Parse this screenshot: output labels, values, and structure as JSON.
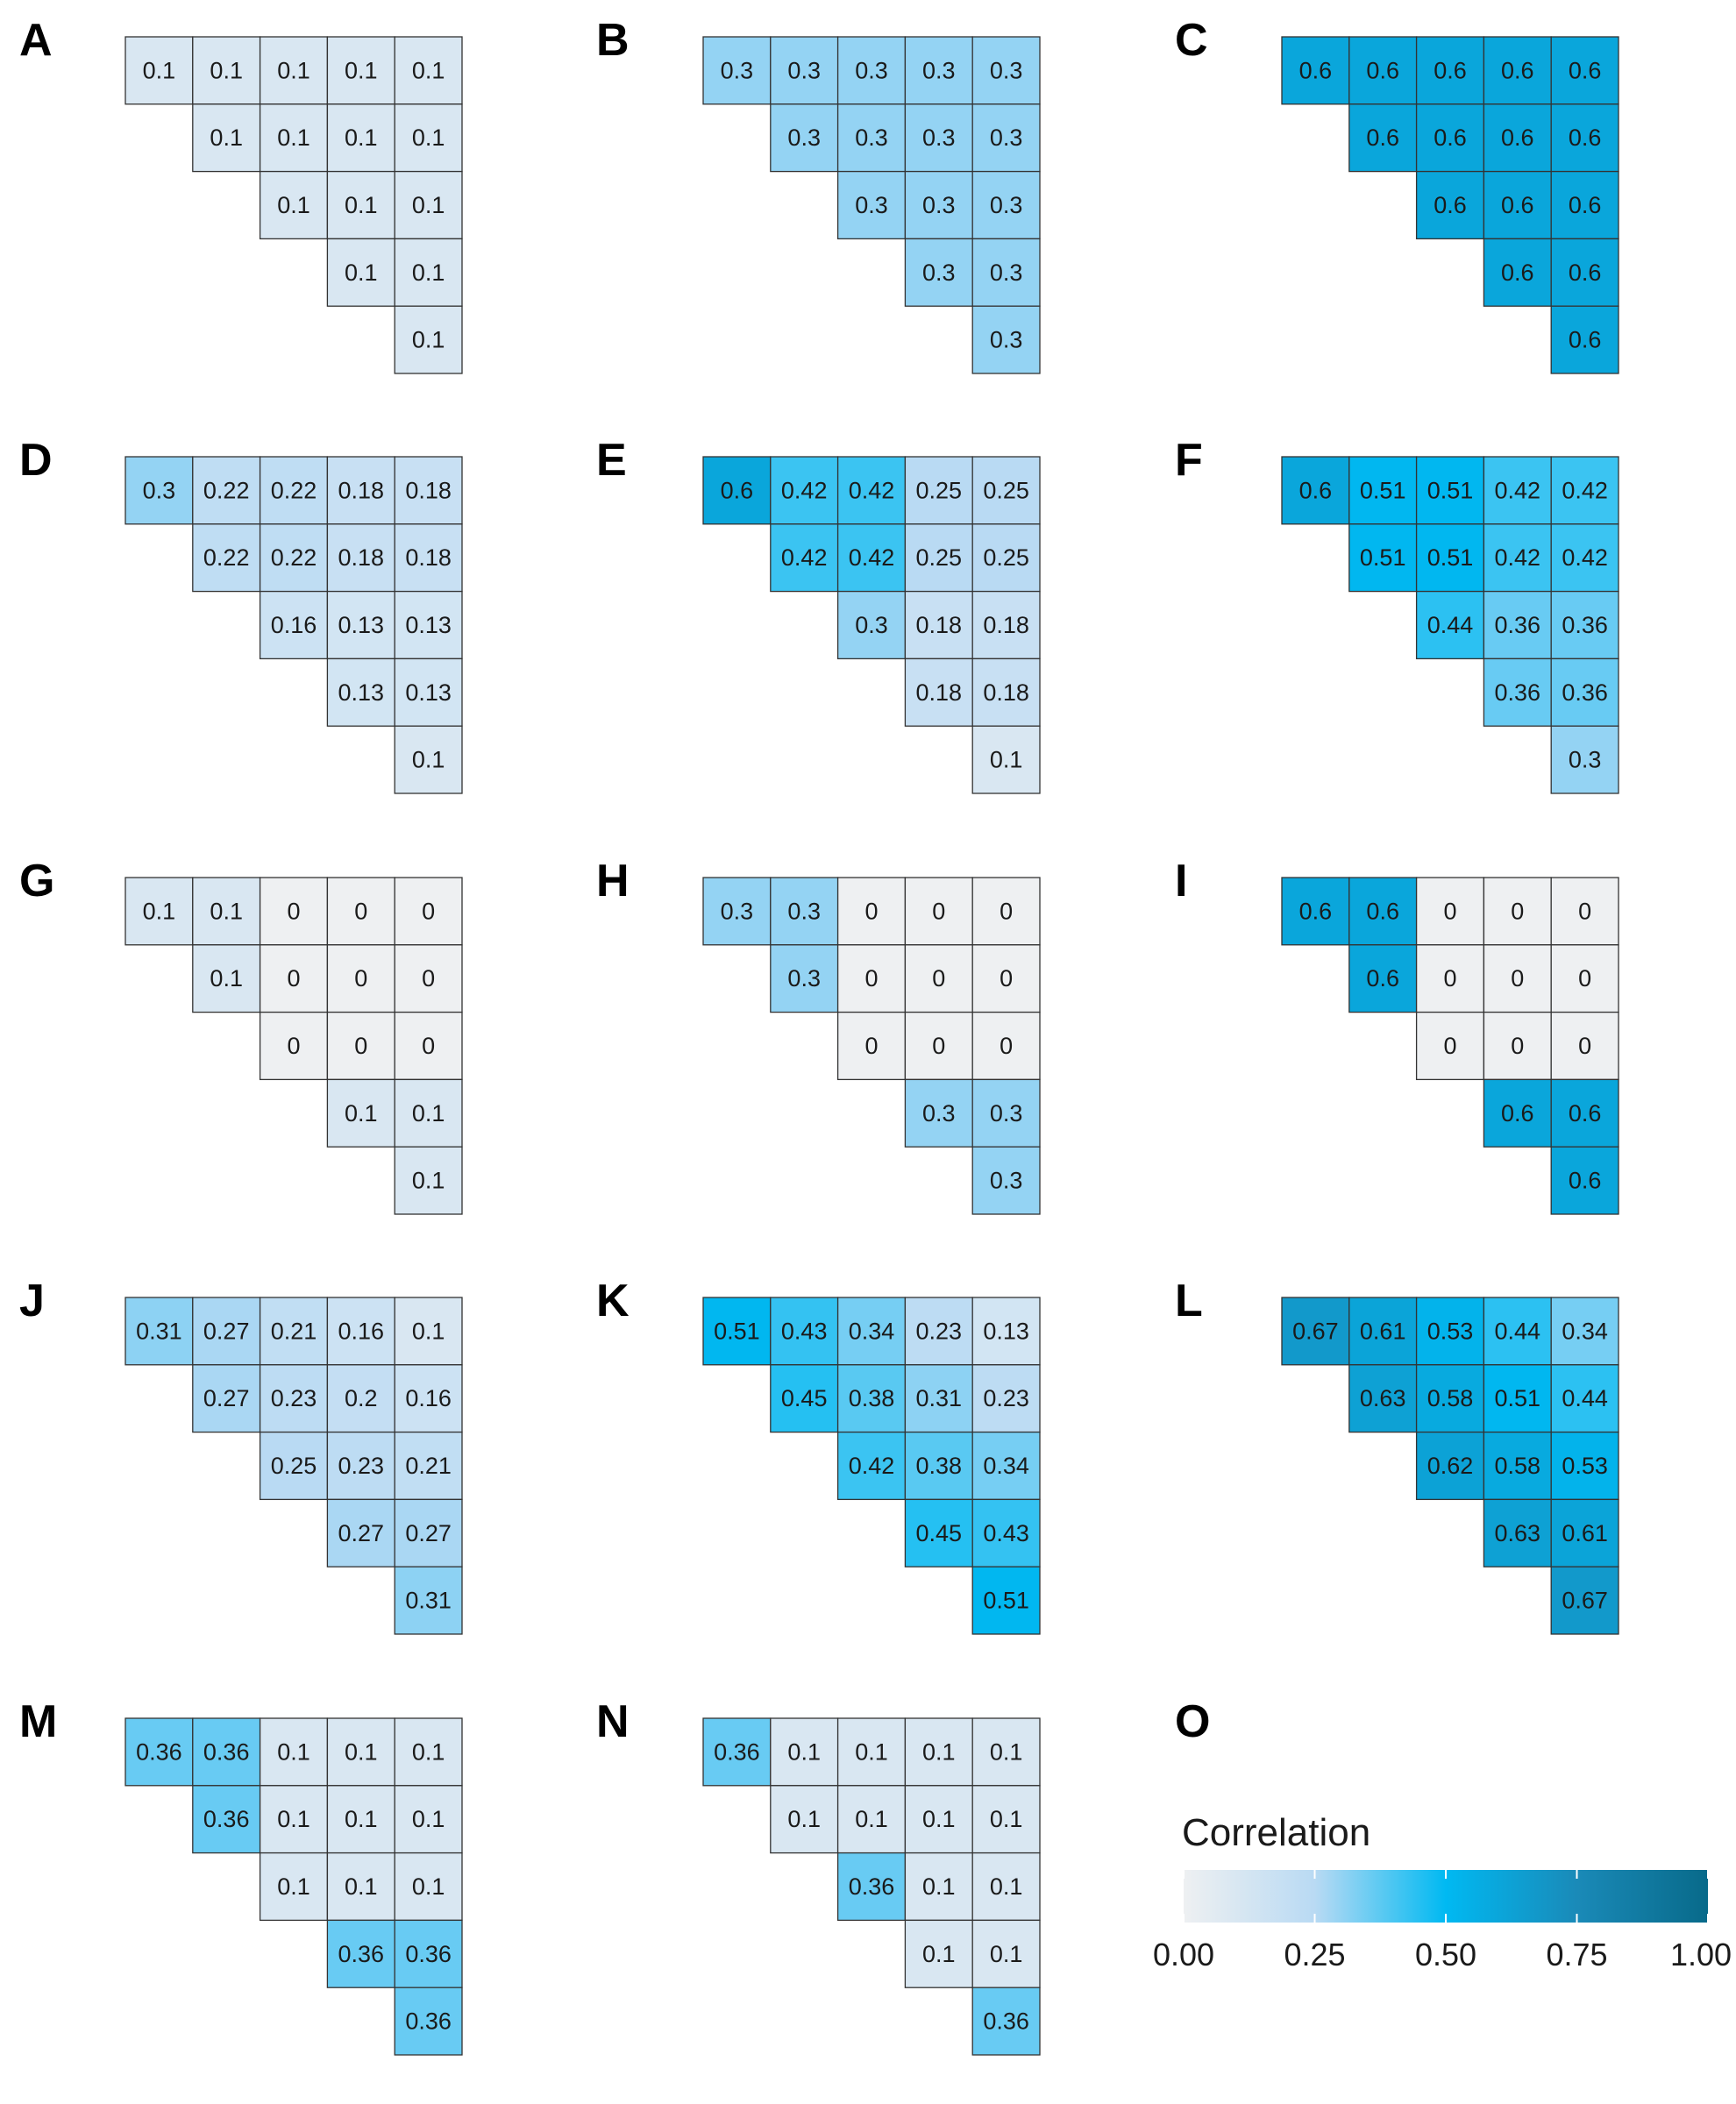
{
  "chart_data": {
    "type": "heatmap",
    "panels": [
      {
        "label": "A",
        "rows": [
          [
            0.1,
            0.1,
            0.1,
            0.1,
            0.1
          ],
          [
            0.1,
            0.1,
            0.1,
            0.1
          ],
          [
            0.1,
            0.1,
            0.1
          ],
          [
            0.1,
            0.1
          ],
          [
            0.1
          ]
        ]
      },
      {
        "label": "B",
        "rows": [
          [
            0.3,
            0.3,
            0.3,
            0.3,
            0.3
          ],
          [
            0.3,
            0.3,
            0.3,
            0.3
          ],
          [
            0.3,
            0.3,
            0.3
          ],
          [
            0.3,
            0.3
          ],
          [
            0.3
          ]
        ]
      },
      {
        "label": "C",
        "rows": [
          [
            0.6,
            0.6,
            0.6,
            0.6,
            0.6
          ],
          [
            0.6,
            0.6,
            0.6,
            0.6
          ],
          [
            0.6,
            0.6,
            0.6
          ],
          [
            0.6,
            0.6
          ],
          [
            0.6
          ]
        ]
      },
      {
        "label": "D",
        "rows": [
          [
            0.3,
            0.22,
            0.22,
            0.18,
            0.18
          ],
          [
            0.22,
            0.22,
            0.18,
            0.18
          ],
          [
            0.16,
            0.13,
            0.13
          ],
          [
            0.13,
            0.13
          ],
          [
            0.1
          ]
        ]
      },
      {
        "label": "E",
        "rows": [
          [
            0.6,
            0.42,
            0.42,
            0.25,
            0.25
          ],
          [
            0.42,
            0.42,
            0.25,
            0.25
          ],
          [
            0.3,
            0.18,
            0.18
          ],
          [
            0.18,
            0.18
          ],
          [
            0.1
          ]
        ]
      },
      {
        "label": "F",
        "rows": [
          [
            0.6,
            0.51,
            0.51,
            0.42,
            0.42
          ],
          [
            0.51,
            0.51,
            0.42,
            0.42
          ],
          [
            0.44,
            0.36,
            0.36
          ],
          [
            0.36,
            0.36
          ],
          [
            0.3
          ]
        ]
      },
      {
        "label": "G",
        "rows": [
          [
            0.1,
            0.1,
            0,
            0,
            0
          ],
          [
            0.1,
            0,
            0,
            0
          ],
          [
            0,
            0,
            0
          ],
          [
            0.1,
            0.1
          ],
          [
            0.1
          ]
        ]
      },
      {
        "label": "H",
        "rows": [
          [
            0.3,
            0.3,
            0,
            0,
            0
          ],
          [
            0.3,
            0,
            0,
            0
          ],
          [
            0,
            0,
            0
          ],
          [
            0.3,
            0.3
          ],
          [
            0.3
          ]
        ]
      },
      {
        "label": "I",
        "rows": [
          [
            0.6,
            0.6,
            0,
            0,
            0
          ],
          [
            0.6,
            0,
            0,
            0
          ],
          [
            0,
            0,
            0
          ],
          [
            0.6,
            0.6
          ],
          [
            0.6
          ]
        ]
      },
      {
        "label": "J",
        "rows": [
          [
            0.31,
            0.27,
            0.21,
            0.16,
            0.1
          ],
          [
            0.27,
            0.23,
            0.2,
            0.16
          ],
          [
            0.25,
            0.23,
            0.21
          ],
          [
            0.27,
            0.27
          ],
          [
            0.31
          ]
        ]
      },
      {
        "label": "K",
        "rows": [
          [
            0.51,
            0.43,
            0.34,
            0.23,
            0.13
          ],
          [
            0.45,
            0.38,
            0.31,
            0.23
          ],
          [
            0.42,
            0.38,
            0.34
          ],
          [
            0.45,
            0.43
          ],
          [
            0.51
          ]
        ]
      },
      {
        "label": "L",
        "rows": [
          [
            0.67,
            0.61,
            0.53,
            0.44,
            0.34
          ],
          [
            0.63,
            0.58,
            0.51,
            0.44
          ],
          [
            0.62,
            0.58,
            0.53
          ],
          [
            0.63,
            0.61
          ],
          [
            0.67
          ]
        ]
      },
      {
        "label": "M",
        "rows": [
          [
            0.36,
            0.36,
            0.1,
            0.1,
            0.1
          ],
          [
            0.36,
            0.1,
            0.1,
            0.1
          ],
          [
            0.1,
            0.1,
            0.1
          ],
          [
            0.36,
            0.36
          ],
          [
            0.36
          ]
        ]
      },
      {
        "label": "N",
        "rows": [
          [
            0.36,
            0.1,
            0.1,
            0.1,
            0.1
          ],
          [
            0.1,
            0.1,
            0.1,
            0.1
          ],
          [
            0.36,
            0.1,
            0.1
          ],
          [
            0.1,
            0.1
          ],
          [
            0.36
          ]
        ]
      }
    ],
    "legend": {
      "panel_label": "O",
      "title": "Correlation",
      "ticks": [
        "0.00",
        "0.25",
        "0.50",
        "0.75",
        "1.00"
      ],
      "range": [
        0,
        1
      ],
      "colors": [
        "#eef0f2",
        "#b9daf3",
        "#00b9f2",
        "#1a8ab8",
        "#086a8a"
      ]
    }
  }
}
